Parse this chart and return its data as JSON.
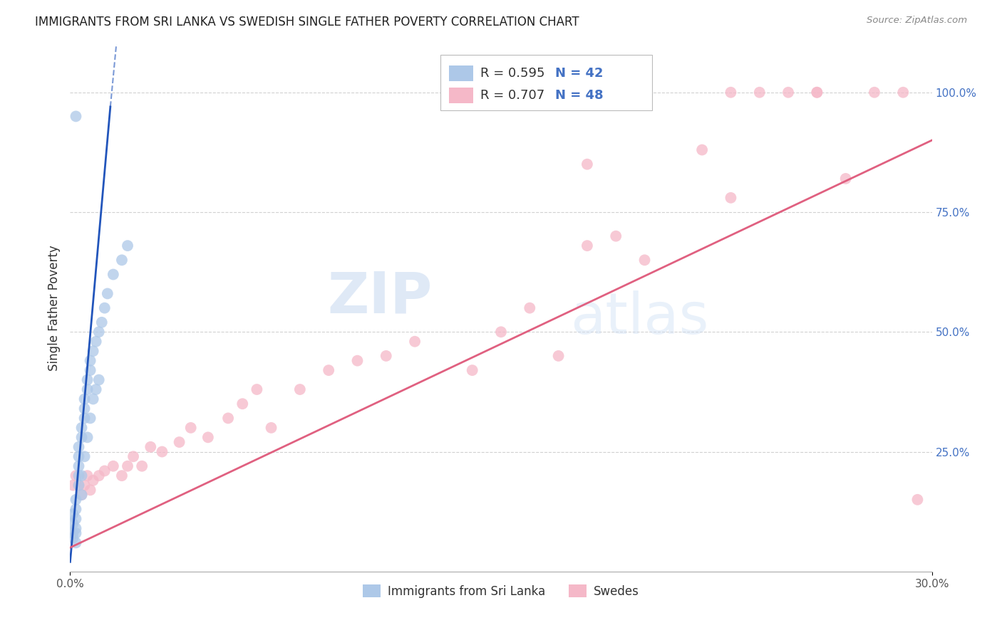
{
  "title": "IMMIGRANTS FROM SRI LANKA VS SWEDISH SINGLE FATHER POVERTY CORRELATION CHART",
  "source": "Source: ZipAtlas.com",
  "ylabel": "Single Father Poverty",
  "xlim": [
    0.0,
    0.3
  ],
  "ylim": [
    0.0,
    1.1
  ],
  "y_ticks_right": [
    0.25,
    0.5,
    0.75,
    1.0
  ],
  "y_tick_labels_right": [
    "25.0%",
    "50.0%",
    "75.0%",
    "100.0%"
  ],
  "blue_r": 0.595,
  "blue_n": 42,
  "pink_r": 0.707,
  "pink_n": 48,
  "blue_color": "#adc8e8",
  "pink_color": "#f5b8c8",
  "blue_line_color": "#2255bb",
  "pink_line_color": "#e06080",
  "legend_label_blue": "Immigrants from Sri Lanka",
  "legend_label_pink": "Swedes",
  "watermark_zip": "ZIP",
  "watermark_atlas": "atlas",
  "blue_scatter_x": [
    0.001,
    0.001,
    0.001,
    0.001,
    0.002,
    0.002,
    0.002,
    0.002,
    0.002,
    0.002,
    0.003,
    0.003,
    0.003,
    0.003,
    0.003,
    0.004,
    0.004,
    0.004,
    0.004,
    0.005,
    0.005,
    0.005,
    0.005,
    0.006,
    0.006,
    0.006,
    0.007,
    0.007,
    0.007,
    0.008,
    0.008,
    0.009,
    0.009,
    0.01,
    0.01,
    0.011,
    0.012,
    0.013,
    0.015,
    0.018,
    0.02,
    0.002
  ],
  "blue_scatter_y": [
    0.08,
    0.1,
    0.12,
    0.07,
    0.09,
    0.11,
    0.13,
    0.15,
    0.08,
    0.06,
    0.2,
    0.22,
    0.24,
    0.26,
    0.18,
    0.28,
    0.3,
    0.2,
    0.16,
    0.32,
    0.34,
    0.36,
    0.24,
    0.38,
    0.4,
    0.28,
    0.42,
    0.44,
    0.32,
    0.46,
    0.36,
    0.48,
    0.38,
    0.5,
    0.4,
    0.52,
    0.55,
    0.58,
    0.62,
    0.65,
    0.68,
    0.95
  ],
  "pink_scatter_x": [
    0.001,
    0.002,
    0.003,
    0.004,
    0.005,
    0.006,
    0.007,
    0.008,
    0.01,
    0.012,
    0.015,
    0.018,
    0.02,
    0.022,
    0.025,
    0.028,
    0.032,
    0.038,
    0.042,
    0.048,
    0.055,
    0.06,
    0.065,
    0.07,
    0.08,
    0.09,
    0.1,
    0.11,
    0.12,
    0.14,
    0.15,
    0.16,
    0.17,
    0.18,
    0.19,
    0.2,
    0.22,
    0.23,
    0.24,
    0.25,
    0.26,
    0.27,
    0.28,
    0.29,
    0.295,
    0.23,
    0.18,
    0.26
  ],
  "pink_scatter_y": [
    0.18,
    0.2,
    0.18,
    0.16,
    0.18,
    0.2,
    0.17,
    0.19,
    0.2,
    0.21,
    0.22,
    0.2,
    0.22,
    0.24,
    0.22,
    0.26,
    0.25,
    0.27,
    0.3,
    0.28,
    0.32,
    0.35,
    0.38,
    0.3,
    0.38,
    0.42,
    0.44,
    0.45,
    0.48,
    0.42,
    0.5,
    0.55,
    0.45,
    0.68,
    0.7,
    0.65,
    0.88,
    1.0,
    1.0,
    1.0,
    1.0,
    0.82,
    1.0,
    1.0,
    0.15,
    0.78,
    0.85,
    1.0
  ]
}
